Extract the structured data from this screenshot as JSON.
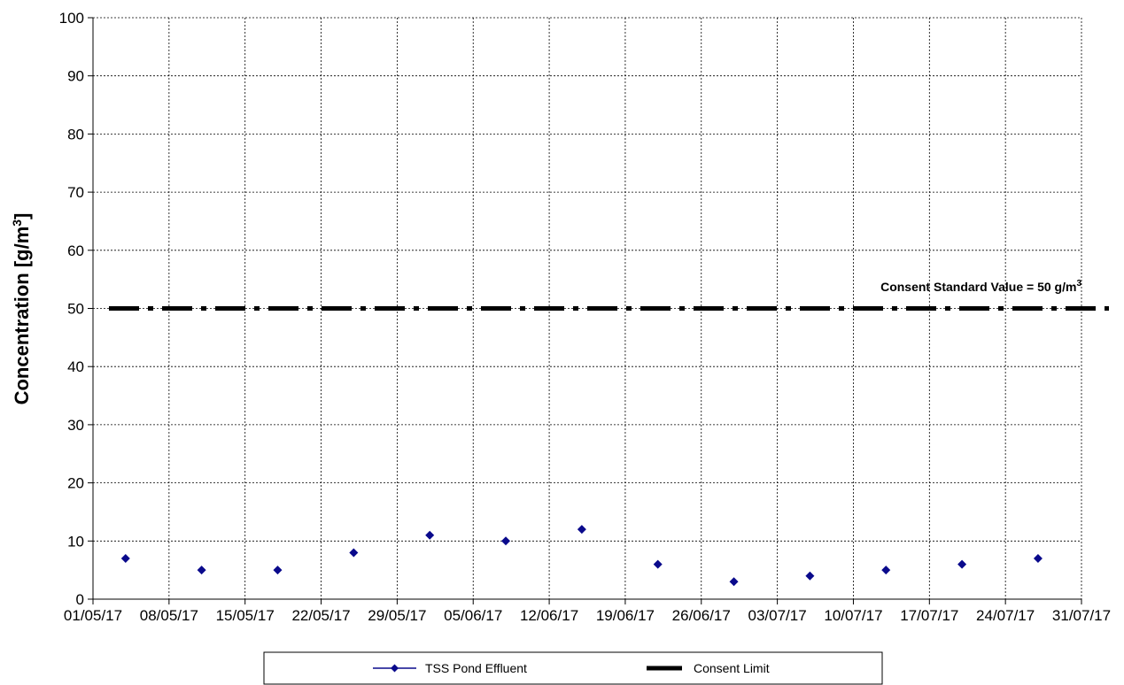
{
  "chart_data": {
    "type": "scatter",
    "title": "",
    "xlabel": "",
    "ylabel": "Concentration [g/m³]",
    "ylabel_main": "Concentration [g/m",
    "ylabel_sup": "3",
    "ylabel_end": "]",
    "ylim": [
      0,
      100
    ],
    "yticks": [
      0,
      10,
      20,
      30,
      40,
      50,
      60,
      70,
      80,
      90,
      100
    ],
    "xlim": [
      "2017-05-01",
      "2017-07-31"
    ],
    "xticks": [
      "01/05/17",
      "08/05/17",
      "15/05/17",
      "22/05/17",
      "29/05/17",
      "05/06/17",
      "12/06/17",
      "19/06/17",
      "26/06/17",
      "03/07/17",
      "10/07/17",
      "17/07/17",
      "24/07/17",
      "31/07/17"
    ],
    "grid": true,
    "series": [
      {
        "name": "TSS Pond Effluent",
        "color": "#0a0a8c",
        "marker": "diamond",
        "points": [
          {
            "x": "2017-05-04",
            "y": 7
          },
          {
            "x": "2017-05-11",
            "y": 5
          },
          {
            "x": "2017-05-18",
            "y": 5
          },
          {
            "x": "2017-05-25",
            "y": 8
          },
          {
            "x": "2017-06-01",
            "y": 11
          },
          {
            "x": "2017-06-08",
            "y": 10
          },
          {
            "x": "2017-06-15",
            "y": 12
          },
          {
            "x": "2017-06-22",
            "y": 6
          },
          {
            "x": "2017-06-29",
            "y": 3
          },
          {
            "x": "2017-07-06",
            "y": 4
          },
          {
            "x": "2017-07-13",
            "y": 5
          },
          {
            "x": "2017-07-20",
            "y": 6
          },
          {
            "x": "2017-07-27",
            "y": 7
          }
        ]
      },
      {
        "name": "Consent Limit",
        "color": "#000000",
        "style": "dash-dot",
        "value": 50
      }
    ],
    "annotations": [
      {
        "text_main": "Consent Standard Value = 50 g/m",
        "text_sup": "3"
      }
    ],
    "legend": {
      "placement": "bottom",
      "items": [
        {
          "label": "TSS Pond Effluent"
        },
        {
          "label": "Consent Limit"
        }
      ]
    }
  }
}
